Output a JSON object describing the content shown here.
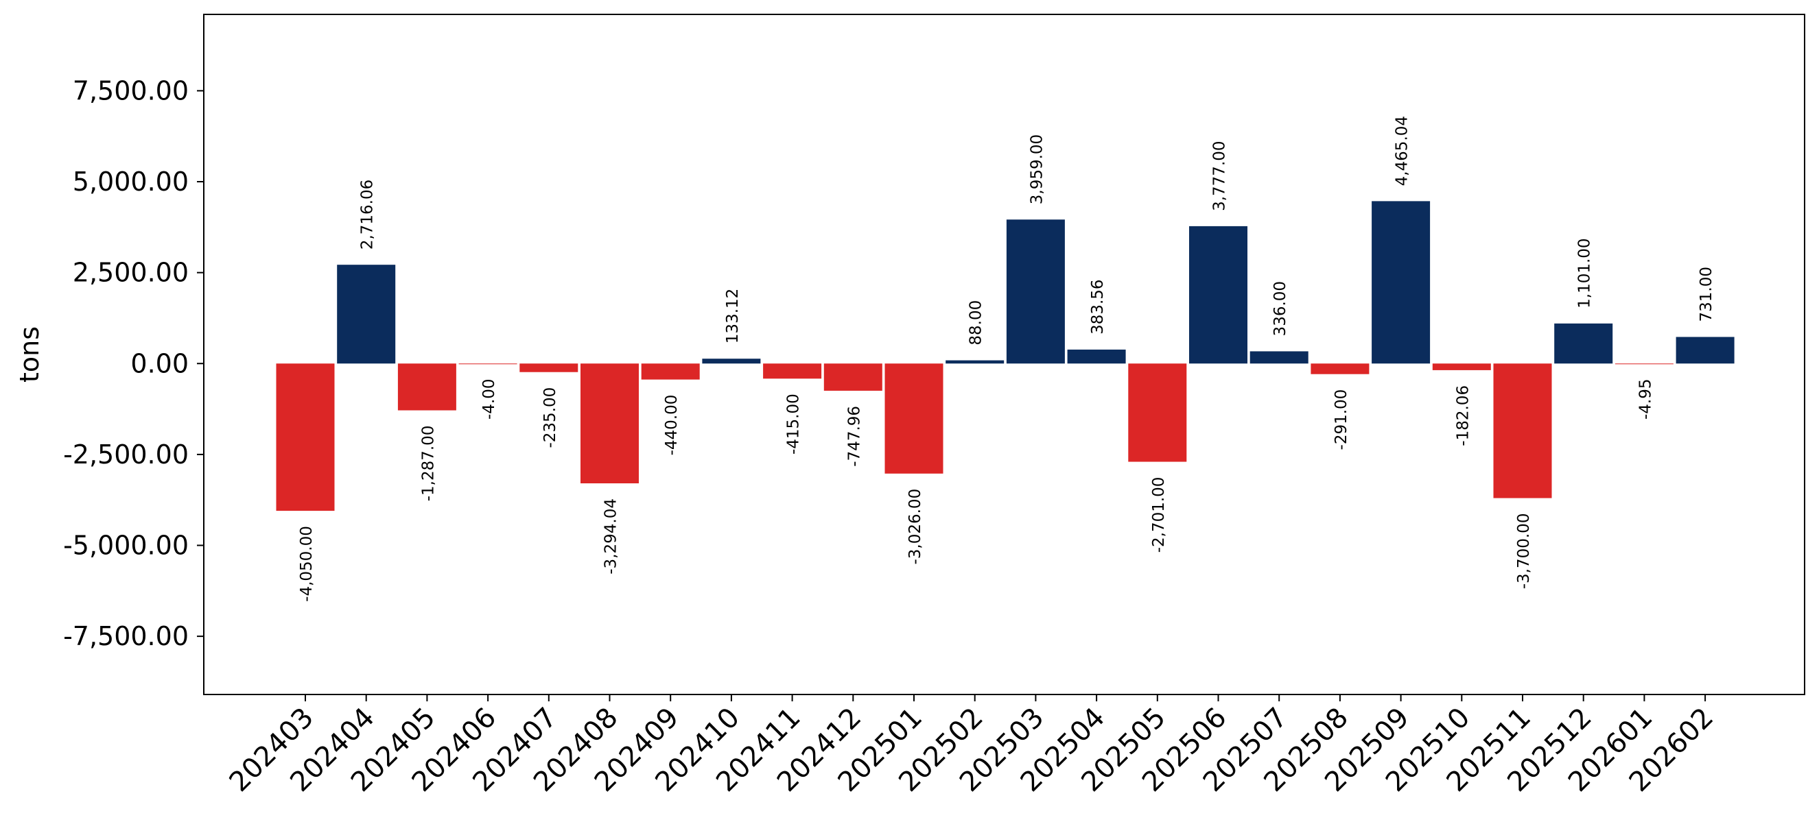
{
  "chart_data": {
    "type": "bar",
    "title": "",
    "xlabel": "",
    "ylabel": "tons",
    "ylim": [
      -9100,
      9600
    ],
    "yticks": [
      -7500,
      -5000,
      -2500,
      0,
      2500,
      5000,
      7500
    ],
    "ytick_labels": [
      "-7,500.00",
      "-5,000.00",
      "-2,500.00",
      "0.00",
      "2,500.00",
      "5,000.00",
      "7,500.00"
    ],
    "grid": false,
    "colors": {
      "positive": "#0b2c5c",
      "negative": "#dc2626"
    },
    "categories": [
      "202403",
      "202404",
      "202405",
      "202406",
      "202407",
      "202408",
      "202409",
      "202410",
      "202411",
      "202412",
      "202501",
      "202502",
      "202503",
      "202504",
      "202505",
      "202506",
      "202507",
      "202508",
      "202509",
      "202510",
      "202511",
      "202512",
      "202601",
      "202602"
    ],
    "values": [
      -4050.0,
      2716.06,
      -1287.0,
      -4.0,
      -235.0,
      -3294.04,
      -440.0,
      133.12,
      -415.0,
      -747.96,
      -3026.0,
      88.0,
      3959.0,
      383.56,
      -2701.0,
      3777.0,
      336.0,
      -291.0,
      4465.04,
      -182.06,
      -3700.0,
      1101.0,
      -4.95,
      731.0
    ],
    "value_labels": [
      "-4,050.00",
      "2,716.06",
      "-1,287.00",
      "-4.00",
      "-235.00",
      "-3,294.04",
      "-440.00",
      "133.12",
      "-415.00",
      "-747.96",
      "-3,026.00",
      "88.00",
      "3,959.00",
      "383.56",
      "-2,701.00",
      "3,777.00",
      "336.00",
      "-291.00",
      "4,465.04",
      "-182.06",
      "-3,700.00",
      "1,101.00",
      "-4.95",
      "731.00"
    ]
  }
}
